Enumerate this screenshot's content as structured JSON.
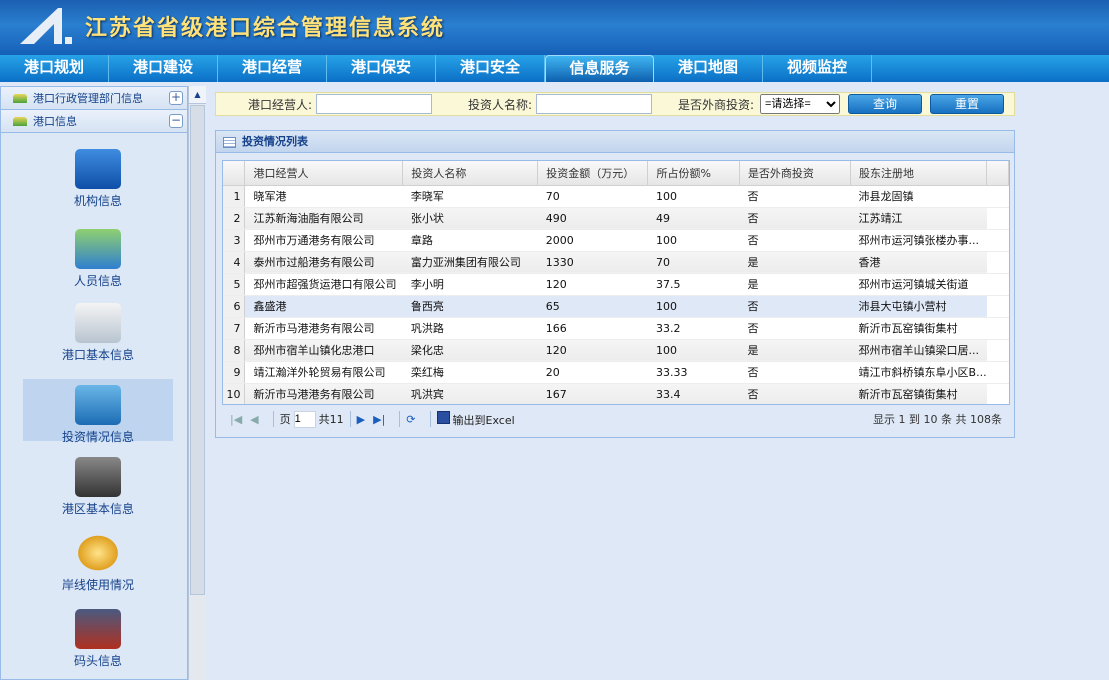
{
  "app": {
    "title": "江苏省省级港口综合管理信息系统",
    "logo_letter": "A."
  },
  "nav": {
    "items": [
      "港口规划",
      "港口建设",
      "港口经营",
      "港口保安",
      "港口安全",
      "信息服务",
      "港口地图",
      "视频监控"
    ],
    "active_index": 5
  },
  "sidebar": {
    "groups": [
      {
        "label": "港口行政管理部门信息",
        "toggle": "+"
      },
      {
        "label": "港口信息",
        "toggle": "−"
      }
    ],
    "items": [
      {
        "label": "机构信息",
        "icon": "house-icon"
      },
      {
        "label": "人员信息",
        "icon": "person-card-icon"
      },
      {
        "label": "港口基本信息",
        "icon": "document-magnifier-icon"
      },
      {
        "label": "投资情况信息",
        "icon": "investment-icon",
        "selected": true
      },
      {
        "label": "港区基本信息",
        "icon": "gps-device-icon"
      },
      {
        "label": "岸线使用情况",
        "icon": "coins-icon"
      },
      {
        "label": "码头信息",
        "icon": "container-crane-icon"
      }
    ]
  },
  "search": {
    "operator_label": "港口经营人:",
    "operator_value": "",
    "investor_label": "投资人名称:",
    "investor_value": "",
    "foreign_label": "是否外商投资:",
    "foreign_selected": "=请选择=",
    "query_button": "查询",
    "reset_button": "重置"
  },
  "grid": {
    "title": "投资情况列表",
    "columns": [
      "港口经营人",
      "投资人名称",
      "投资金额（万元）",
      "所占份额%",
      "是否外商投资",
      "股东注册地"
    ],
    "rows": [
      [
        "1",
        "晓军港",
        "李晓军",
        "70",
        "100",
        "否",
        "沛县龙固镇"
      ],
      [
        "2",
        "江苏新海油脂有限公司",
        "张小状",
        "490",
        "49",
        "否",
        "江苏靖江"
      ],
      [
        "3",
        "邳州市万通港务有限公司",
        "章路",
        "2000",
        "100",
        "否",
        "邳州市运河镇张楼办事..."
      ],
      [
        "4",
        "泰州市过船港务有限公司",
        "富力亚洲集团有限公司",
        "1330",
        "70",
        "是",
        "香港"
      ],
      [
        "5",
        "邳州市超强货运港口有限公司",
        "李小明",
        "120",
        "37.5",
        "是",
        "邳州市运河镇城关街道"
      ],
      [
        "6",
        "鑫盛港",
        "鲁西亮",
        "65",
        "100",
        "否",
        "沛县大屯镇小营村"
      ],
      [
        "7",
        "新沂市马港港务有限公司",
        "巩洪路",
        "166",
        "33.2",
        "否",
        "新沂市瓦窑镇街集村"
      ],
      [
        "8",
        "邳州市宿羊山镇化忠港口",
        "梁化忠",
        "120",
        "100",
        "是",
        "邳州市宿羊山镇梁口居..."
      ],
      [
        "9",
        "靖江瀚洋外轮贸易有限公司",
        "栾红梅",
        "20",
        "33.33",
        "否",
        "靖江市斜桥镇东阜小区B..."
      ],
      [
        "10",
        "新沂市马港港务有限公司",
        "巩洪宾",
        "167",
        "33.4",
        "否",
        "新沂市瓦窑镇街集村"
      ]
    ],
    "selected_row": 6,
    "pager": {
      "page_label": "页",
      "page_value": "1",
      "total_pages": "共11",
      "export_label": "输出到Excel",
      "info": "显示 1 到 10 条 共 108条"
    }
  }
}
